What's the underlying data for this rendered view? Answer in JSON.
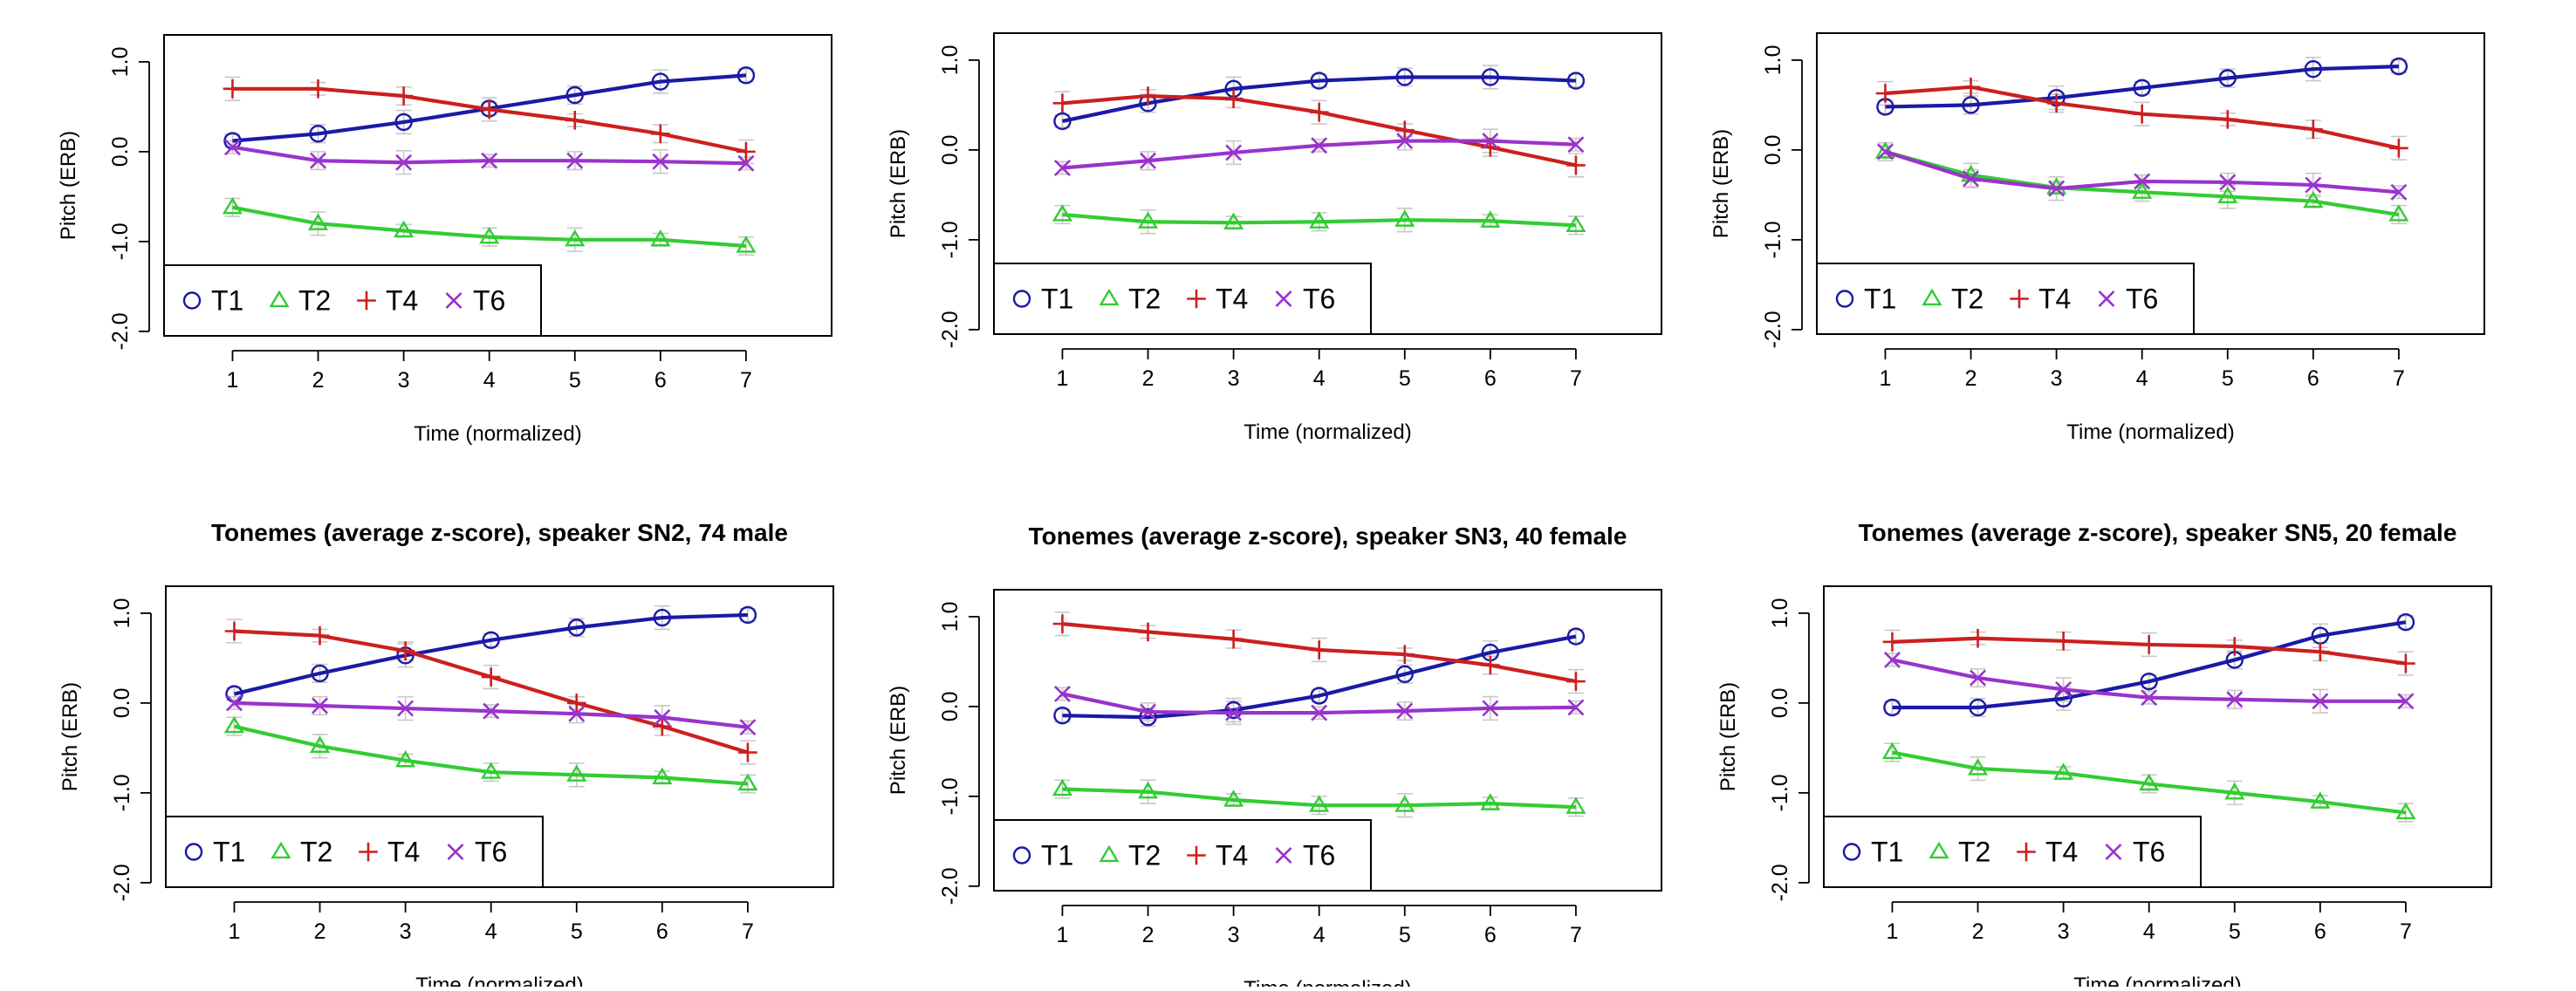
{
  "colors": {
    "T1": "#1a1aa6",
    "T2": "#33cc33",
    "T4": "#cc1f1f",
    "T6": "#9933cc",
    "frame": "#000000",
    "errorbar": "#c8c8c8"
  },
  "chart_data": [
    {
      "type": "line",
      "title": "",
      "xlabel": "Time (normalized)",
      "ylabel": "Pitch (ERB)",
      "x": [
        1,
        2,
        3,
        4,
        5,
        6,
        7
      ],
      "xlim": [
        0.2,
        8.0
      ],
      "ylim": [
        -2.05,
        1.3
      ],
      "yticks": [
        "1.0",
        "0.0",
        "-1.0",
        "-2.0"
      ],
      "ytick_values": [
        1.0,
        0.0,
        -1.0,
        -2.0
      ],
      "legend": "bottom-left",
      "series": [
        {
          "name": "T1",
          "marker": "circle",
          "values": [
            0.12,
            0.2,
            0.33,
            0.48,
            0.63,
            0.78,
            0.85
          ]
        },
        {
          "name": "T2",
          "marker": "triangle",
          "values": [
            -0.62,
            -0.8,
            -0.88,
            -0.95,
            -0.98,
            -0.98,
            -1.05
          ]
        },
        {
          "name": "T4",
          "marker": "plus",
          "values": [
            0.7,
            0.7,
            0.62,
            0.47,
            0.35,
            0.2,
            0.0
          ]
        },
        {
          "name": "T6",
          "marker": "cross",
          "values": [
            0.05,
            -0.1,
            -0.12,
            -0.1,
            -0.1,
            -0.11,
            -0.13
          ]
        }
      ]
    },
    {
      "type": "line",
      "title": "",
      "xlabel": "Time (normalized)",
      "ylabel": "Pitch (ERB)",
      "x": [
        1,
        2,
        3,
        4,
        5,
        6,
        7
      ],
      "xlim": [
        0.2,
        8.0
      ],
      "ylim": [
        -2.05,
        1.3
      ],
      "yticks": [
        "1.0",
        "0.0",
        "-1.0",
        "-2.0"
      ],
      "ytick_values": [
        1.0,
        0.0,
        -1.0,
        -2.0
      ],
      "legend": "bottom-left",
      "series": [
        {
          "name": "T1",
          "marker": "circle",
          "values": [
            0.32,
            0.52,
            0.68,
            0.77,
            0.81,
            0.81,
            0.77
          ]
        },
        {
          "name": "T2",
          "marker": "triangle",
          "values": [
            -0.72,
            -0.8,
            -0.81,
            -0.8,
            -0.78,
            -0.79,
            -0.84
          ]
        },
        {
          "name": "T4",
          "marker": "plus",
          "values": [
            0.52,
            0.6,
            0.57,
            0.42,
            0.22,
            0.03,
            -0.17
          ]
        },
        {
          "name": "T6",
          "marker": "cross",
          "values": [
            -0.2,
            -0.12,
            -0.03,
            0.05,
            0.1,
            0.1,
            0.06
          ]
        }
      ]
    },
    {
      "type": "line",
      "title": "",
      "xlabel": "Time (normalized)",
      "ylabel": "Pitch (ERB)",
      "x": [
        1,
        2,
        3,
        4,
        5,
        6,
        7
      ],
      "xlim": [
        0.2,
        8.0
      ],
      "ylim": [
        -2.05,
        1.3
      ],
      "yticks": [
        "1.0",
        "0.0",
        "-1.0",
        "-2.0"
      ],
      "ytick_values": [
        1.0,
        0.0,
        -1.0,
        -2.0
      ],
      "legend": "bottom-left",
      "series": [
        {
          "name": "T1",
          "marker": "circle",
          "values": [
            0.48,
            0.5,
            0.58,
            0.69,
            0.8,
            0.9,
            0.93
          ]
        },
        {
          "name": "T2",
          "marker": "triangle",
          "values": [
            -0.02,
            -0.28,
            -0.42,
            -0.47,
            -0.52,
            -0.57,
            -0.72
          ]
        },
        {
          "name": "T4",
          "marker": "plus",
          "values": [
            0.63,
            0.7,
            0.52,
            0.4,
            0.34,
            0.23,
            0.02
          ]
        },
        {
          "name": "T6",
          "marker": "cross",
          "values": [
            -0.02,
            -0.32,
            -0.43,
            -0.35,
            -0.36,
            -0.39,
            -0.47
          ]
        }
      ]
    },
    {
      "type": "line",
      "title": "Tonemes (average z-score), speaker SN2, 74 male",
      "xlabel": "Time (normalized)",
      "ylabel": "Pitch (ERB)",
      "x": [
        1,
        2,
        3,
        4,
        5,
        6,
        7
      ],
      "xlim": [
        0.2,
        8.0
      ],
      "ylim": [
        -2.05,
        1.3
      ],
      "yticks": [
        "1.0",
        "0.0",
        "-1.0",
        "-2.0"
      ],
      "ytick_values": [
        1.0,
        0.0,
        -1.0,
        -2.0
      ],
      "legend": "bottom-left",
      "series": [
        {
          "name": "T1",
          "marker": "circle",
          "values": [
            0.1,
            0.33,
            0.53,
            0.7,
            0.84,
            0.95,
            0.98
          ]
        },
        {
          "name": "T2",
          "marker": "triangle",
          "values": [
            -0.26,
            -0.48,
            -0.64,
            -0.77,
            -0.8,
            -0.83,
            -0.9
          ]
        },
        {
          "name": "T4",
          "marker": "plus",
          "values": [
            0.8,
            0.75,
            0.58,
            0.29,
            0.0,
            -0.26,
            -0.55
          ]
        },
        {
          "name": "T6",
          "marker": "cross",
          "values": [
            0.0,
            -0.03,
            -0.06,
            -0.09,
            -0.12,
            -0.16,
            -0.27
          ]
        }
      ]
    },
    {
      "type": "line",
      "title": "Tonemes (average z-score), speaker SN3, 40 female",
      "xlabel": "Time (normalized)",
      "ylabel": "Pitch (ERB)",
      "x": [
        1,
        2,
        3,
        4,
        5,
        6,
        7
      ],
      "xlim": [
        0.2,
        8.0
      ],
      "ylim": [
        -2.05,
        1.3
      ],
      "yticks": [
        "1.0",
        "0.0",
        "-1.0",
        "-2.0"
      ],
      "ytick_values": [
        1.0,
        0.0,
        -1.0,
        -2.0
      ],
      "legend": "bottom-left",
      "series": [
        {
          "name": "T1",
          "marker": "circle",
          "values": [
            -0.1,
            -0.12,
            -0.04,
            0.12,
            0.36,
            0.6,
            0.78
          ]
        },
        {
          "name": "T2",
          "marker": "triangle",
          "values": [
            -0.92,
            -0.95,
            -1.04,
            -1.1,
            -1.1,
            -1.08,
            -1.12
          ]
        },
        {
          "name": "T4",
          "marker": "plus",
          "values": [
            0.92,
            0.83,
            0.75,
            0.63,
            0.58,
            0.46,
            0.28
          ]
        },
        {
          "name": "T6",
          "marker": "cross",
          "values": [
            0.14,
            -0.06,
            -0.07,
            -0.07,
            -0.05,
            -0.02,
            -0.01
          ]
        }
      ]
    },
    {
      "type": "line",
      "title": "Tonemes (average z-score), speaker SN5, 20 female",
      "xlabel": "Time (normalized)",
      "ylabel": "Pitch (ERB)",
      "x": [
        1,
        2,
        3,
        4,
        5,
        6,
        7
      ],
      "xlim": [
        0.2,
        8.0
      ],
      "ylim": [
        -2.05,
        1.3
      ],
      "yticks": [
        "1.0",
        "0.0",
        "-1.0",
        "-2.0"
      ],
      "ytick_values": [
        1.0,
        0.0,
        -1.0,
        -2.0
      ],
      "legend": "bottom-left",
      "series": [
        {
          "name": "T1",
          "marker": "circle",
          "values": [
            -0.05,
            -0.05,
            0.05,
            0.24,
            0.48,
            0.75,
            0.9
          ]
        },
        {
          "name": "T2",
          "marker": "triangle",
          "values": [
            -0.55,
            -0.73,
            -0.78,
            -0.9,
            -1.0,
            -1.1,
            -1.22
          ]
        },
        {
          "name": "T4",
          "marker": "plus",
          "values": [
            0.68,
            0.72,
            0.69,
            0.65,
            0.63,
            0.57,
            0.44
          ]
        },
        {
          "name": "T6",
          "marker": "cross",
          "values": [
            0.48,
            0.28,
            0.15,
            0.06,
            0.04,
            0.02,
            0.02
          ]
        }
      ]
    }
  ]
}
